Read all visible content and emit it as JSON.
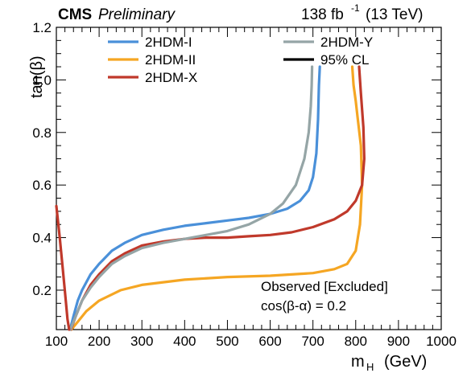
{
  "header": {
    "experiment": "CMS",
    "status": "Preliminary",
    "lumi_value": "138 fb",
    "lumi_exponent": "-1",
    "energy": "(13 TeV)"
  },
  "chart_data": {
    "type": "line",
    "xlabel": "m",
    "xlabel_sub": "H",
    "xlabel_unit": "(GeV)",
    "ylabel": "tan(β)",
    "xlim": [
      100,
      1000
    ],
    "ylim": [
      0.05,
      1.2
    ],
    "x_ticks": [
      100,
      200,
      300,
      400,
      500,
      600,
      700,
      800,
      900,
      1000
    ],
    "y_ticks": [
      0.2,
      0.4,
      0.6,
      0.8,
      1.0,
      1.2
    ],
    "y_tick_labels": [
      "0.2",
      "0.4",
      "0.6",
      "0.8",
      "1.0",
      "1.2"
    ],
    "grid": false,
    "legend_placement": "top",
    "annotations": [
      "Observed [Excluded]",
      "cos(β-α) = 0.2"
    ],
    "series": [
      {
        "name": "2HDM-I",
        "color": "#4a90d9",
        "x": [
          132,
          140,
          150,
          160,
          170,
          180,
          200,
          230,
          260,
          300,
          350,
          400,
          450,
          500,
          550,
          600,
          640,
          670,
          690,
          700,
          708,
          712,
          714,
          716
        ],
        "y": [
          0.05,
          0.1,
          0.16,
          0.2,
          0.23,
          0.26,
          0.3,
          0.35,
          0.38,
          0.41,
          0.43,
          0.445,
          0.455,
          0.465,
          0.475,
          0.49,
          0.51,
          0.54,
          0.58,
          0.63,
          0.72,
          0.85,
          0.98,
          1.05
        ]
      },
      {
        "name": "2HDM-II",
        "color": "#f5a623",
        "x": [
          135,
          150,
          170,
          200,
          250,
          300,
          400,
          500,
          600,
          700,
          750,
          780,
          800,
          810,
          815,
          812,
          805,
          800,
          795,
          792
        ],
        "y": [
          0.05,
          0.08,
          0.12,
          0.16,
          0.2,
          0.22,
          0.24,
          0.25,
          0.255,
          0.265,
          0.28,
          0.3,
          0.35,
          0.45,
          0.6,
          0.75,
          0.85,
          0.92,
          0.98,
          1.05
        ]
      },
      {
        "name": "2HDM-X",
        "color": "#c0392b",
        "x": [
          134,
          145,
          160,
          180,
          200,
          230,
          260,
          300,
          350,
          400,
          450,
          500,
          550,
          600,
          650,
          700,
          750,
          780,
          800,
          815,
          820,
          818,
          812,
          808
        ],
        "y": [
          0.05,
          0.1,
          0.16,
          0.22,
          0.26,
          0.31,
          0.34,
          0.37,
          0.385,
          0.395,
          0.4,
          0.4,
          0.405,
          0.41,
          0.42,
          0.44,
          0.47,
          0.5,
          0.54,
          0.6,
          0.7,
          0.82,
          0.95,
          1.05
        ]
      },
      {
        "name": "2HDM-Y",
        "color": "#95a5a6",
        "x": [
          133,
          145,
          160,
          180,
          200,
          230,
          260,
          300,
          350,
          400,
          450,
          500,
          550,
          600,
          630,
          660,
          680,
          690,
          695,
          697,
          698
        ],
        "y": [
          0.05,
          0.1,
          0.16,
          0.21,
          0.25,
          0.3,
          0.33,
          0.36,
          0.38,
          0.395,
          0.41,
          0.425,
          0.45,
          0.49,
          0.53,
          0.6,
          0.7,
          0.8,
          0.9,
          0.98,
          1.05
        ]
      },
      {
        "name": "",
        "color": "#c0392b",
        "x": [
          100,
          108,
          115,
          122,
          126,
          130
        ],
        "y": [
          0.52,
          0.4,
          0.28,
          0.16,
          0.09,
          0.05
        ]
      }
    ],
    "legend": [
      {
        "label": "2HDM-I",
        "color": "#4a90d9"
      },
      {
        "label": "2HDM-II",
        "color": "#f5a623"
      },
      {
        "label": "2HDM-X",
        "color": "#c0392b"
      },
      {
        "label": "2HDM-Y",
        "color": "#95a5a6"
      },
      {
        "label": "95% CL",
        "color": "#000000"
      }
    ]
  }
}
